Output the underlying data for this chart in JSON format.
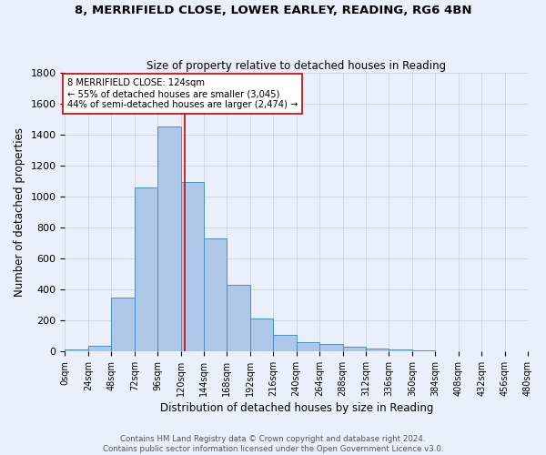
{
  "title1": "8, MERRIFIELD CLOSE, LOWER EARLEY, READING, RG6 4BN",
  "title2": "Size of property relative to detached houses in Reading",
  "xlabel": "Distribution of detached houses by size in Reading",
  "ylabel": "Number of detached properties",
  "footer1": "Contains HM Land Registry data © Crown copyright and database right 2024.",
  "footer2": "Contains public sector information licensed under the Open Government Licence v3.0.",
  "bar_edges": [
    0,
    24,
    48,
    72,
    96,
    120,
    144,
    168,
    192,
    216,
    240,
    264,
    288,
    312,
    336,
    360,
    384,
    408,
    432,
    456,
    480
  ],
  "bar_heights": [
    10,
    35,
    345,
    1055,
    1450,
    1095,
    730,
    432,
    213,
    105,
    57,
    48,
    28,
    16,
    10,
    6,
    3,
    2,
    1,
    1
  ],
  "bar_color": "#aec6e8",
  "bar_edge_color": "#4a90c4",
  "bg_color": "#eaf0fb",
  "grid_color": "#c8d0dc",
  "vline_x": 124,
  "vline_color": "#cc0000",
  "annotation_text": "8 MERRIFIELD CLOSE: 124sqm\n← 55% of detached houses are smaller (3,045)\n44% of semi-detached houses are larger (2,474) →",
  "annotation_box_color": "#ffffff",
  "annotation_border_color": "#cc0000",
  "ylim": [
    0,
    1800
  ],
  "xlim": [
    0,
    480
  ],
  "xtick_step": 24,
  "ytick_step": 200
}
